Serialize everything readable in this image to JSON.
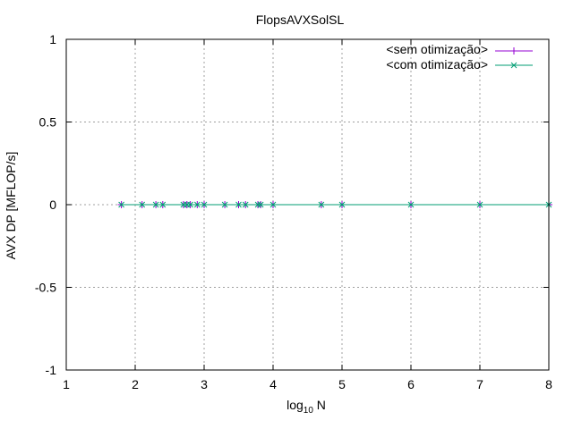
{
  "chart_data": {
    "type": "line",
    "title": "FlopsAVXSolSL",
    "xlabel_base": "log",
    "xlabel_sub": "10",
    "xlabel_tail": " N",
    "ylabel": "AVX DP [MFLOP/s]",
    "xlim": [
      1,
      8
    ],
    "ylim": [
      -1,
      1
    ],
    "x_ticks": [
      1,
      2,
      3,
      4,
      5,
      6,
      7,
      8
    ],
    "x_tick_labels": [
      "1",
      "2",
      "3",
      "4",
      "5",
      "6",
      "7",
      "8"
    ],
    "y_ticks": [
      -1,
      -0.5,
      0,
      0.5,
      1
    ],
    "y_tick_labels": [
      "-1",
      "-0.5",
      "0",
      "0.5",
      "1"
    ],
    "grid": true,
    "legend_position": "top-right",
    "series": [
      {
        "name": "<sem otimização>",
        "color": "#9400d3",
        "marker": "plus",
        "x": [
          1.8,
          2.1,
          2.3,
          2.4,
          2.7,
          2.75,
          2.8,
          2.9,
          3.0,
          3.3,
          3.5,
          3.6,
          3.78,
          3.82,
          4.0,
          4.7,
          5.0,
          6.0,
          7.0,
          8.0
        ],
        "y": [
          0,
          0,
          0,
          0,
          0,
          0,
          0,
          0,
          0,
          0,
          0,
          0,
          0,
          0,
          0,
          0,
          0,
          0,
          0,
          0
        ]
      },
      {
        "name": "<com otimização>",
        "color": "#009e73",
        "marker": "cross",
        "x": [
          1.8,
          2.1,
          2.3,
          2.4,
          2.7,
          2.75,
          2.8,
          2.9,
          3.0,
          3.3,
          3.5,
          3.6,
          3.78,
          3.82,
          4.0,
          4.7,
          5.0,
          6.0,
          7.0,
          8.0
        ],
        "y": [
          0,
          0,
          0,
          0,
          0,
          0,
          0,
          0,
          0,
          0,
          0,
          0,
          0,
          0,
          0,
          0,
          0,
          0,
          0,
          0
        ]
      }
    ]
  }
}
